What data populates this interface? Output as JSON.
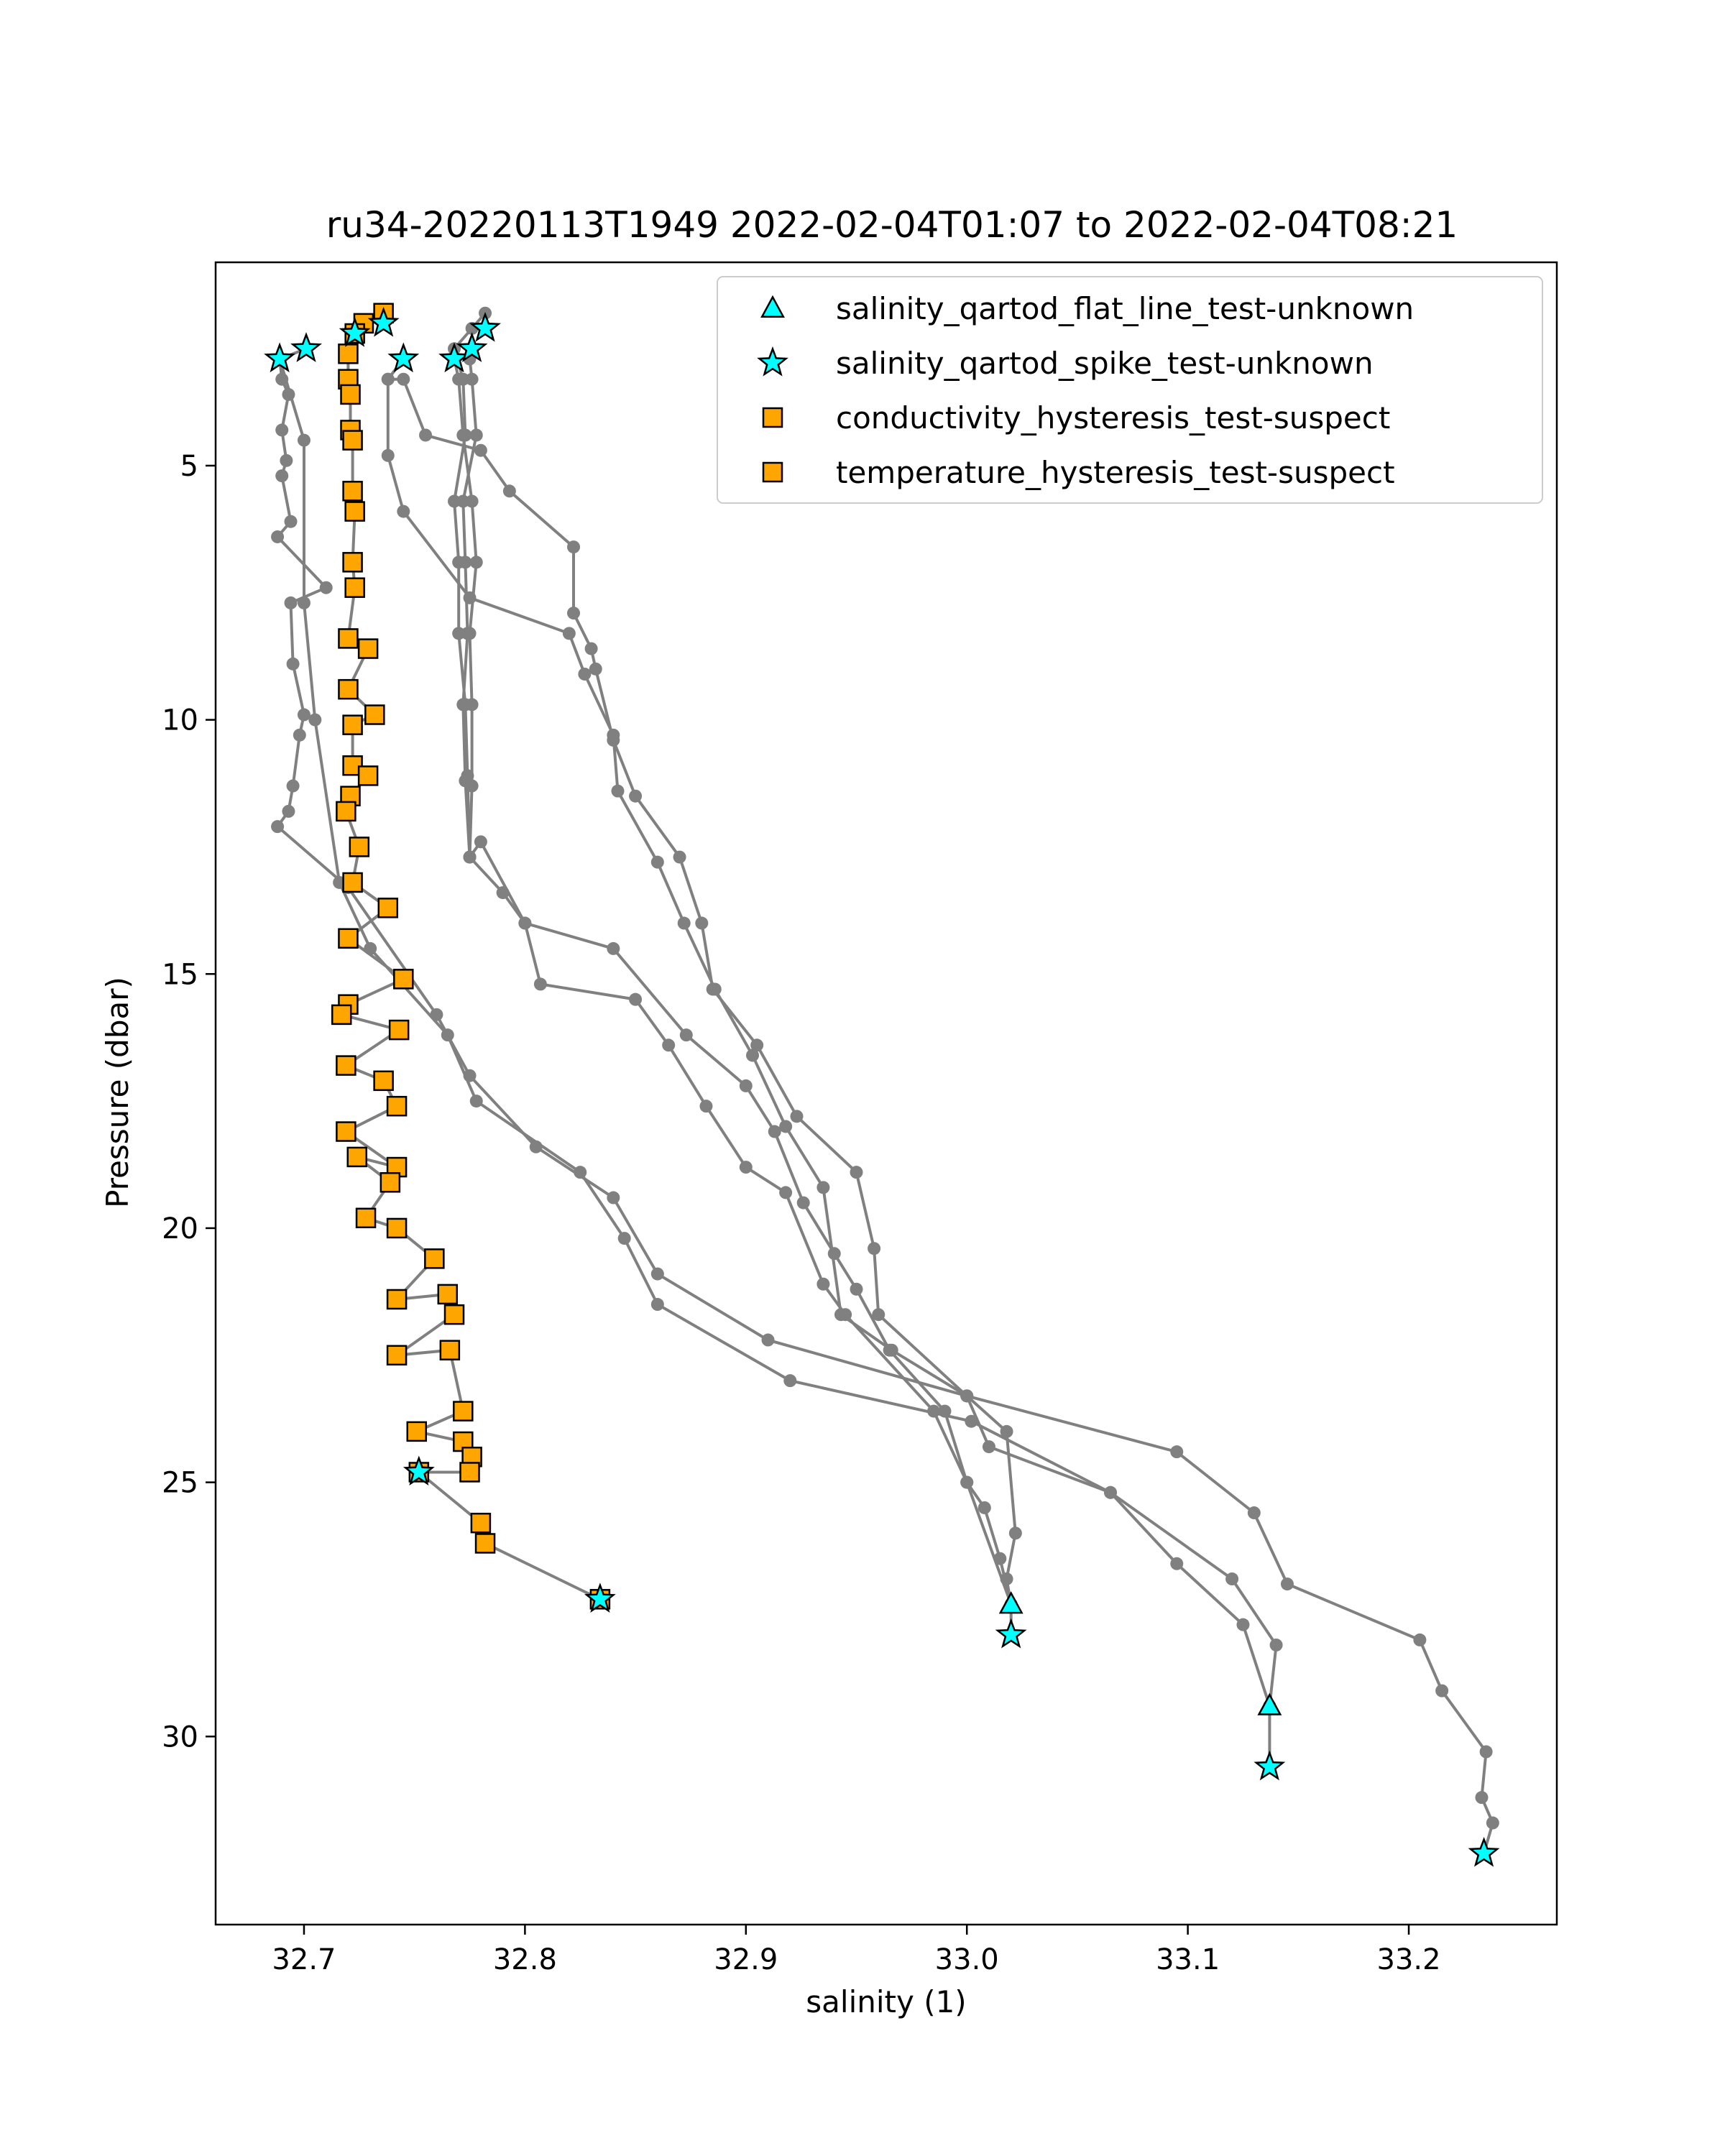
{
  "chart_data": {
    "type": "scatter",
    "title": "ru34-20220113T1949 2022-02-04T01:07 to 2022-02-04T08:21",
    "xlabel": "salinity (1)",
    "ylabel": "Pressure (dbar)",
    "xlim": [
      32.66,
      33.267
    ],
    "ylim": [
      33.7,
      1.0
    ],
    "y_inverted": true,
    "xticks": [
      "32.7",
      "32.8",
      "32.9",
      "33.0",
      "33.1",
      "33.2"
    ],
    "xtick_values": [
      32.7,
      32.8,
      32.9,
      33.0,
      33.1,
      33.2
    ],
    "yticks": [
      "5",
      "10",
      "15",
      "20",
      "25",
      "30"
    ],
    "ytick_values": [
      5,
      10,
      15,
      20,
      25,
      30
    ],
    "grid": false,
    "legend_position": "top-right",
    "colors": {
      "profile_line": "#808080",
      "flat_line_marker": "#00ffff",
      "spike_marker": "#00ffff",
      "hysteresis_marker": "#ffa500",
      "marker_edge": "#000000"
    },
    "legend": [
      {
        "label": "salinity_qartod_flat_line_test-unknown",
        "marker": "triangle",
        "color": "#00ffff"
      },
      {
        "label": "salinity_qartod_spike_test-unknown",
        "marker": "star",
        "color": "#00ffff"
      },
      {
        "label": "conductivity_hysteresis_test-suspect",
        "marker": "square",
        "color": "#ffa500"
      },
      {
        "label": "temperature_hysteresis_test-suspect",
        "marker": "square",
        "color": "#ffa500"
      }
    ],
    "profiles": [
      {
        "points": [
          [
            32.701,
            2.7
          ],
          [
            32.689,
            2.9
          ],
          [
            32.69,
            3.3
          ],
          [
            32.693,
            3.6
          ],
          [
            32.69,
            4.3
          ],
          [
            32.692,
            4.9
          ],
          [
            32.69,
            5.2
          ],
          [
            32.694,
            6.1
          ],
          [
            32.688,
            6.4
          ],
          [
            32.71,
            7.4
          ],
          [
            32.694,
            7.7
          ],
          [
            32.695,
            8.9
          ],
          [
            32.7,
            9.9
          ],
          [
            32.698,
            10.3
          ],
          [
            32.695,
            11.3
          ],
          [
            32.693,
            11.8
          ],
          [
            32.688,
            12.1
          ],
          [
            32.72,
            13.3
          ],
          [
            32.76,
            15.8
          ],
          [
            32.775,
            17.0
          ],
          [
            32.805,
            18.4
          ],
          [
            32.84,
            19.4
          ],
          [
            32.86,
            20.9
          ],
          [
            32.91,
            22.2
          ],
          [
            33.0,
            23.3
          ],
          [
            33.095,
            24.4
          ],
          [
            33.13,
            25.6
          ],
          [
            33.145,
            27.0
          ],
          [
            33.205,
            28.1
          ],
          [
            33.215,
            29.1
          ],
          [
            33.235,
            30.3
          ],
          [
            33.233,
            31.2
          ],
          [
            33.238,
            31.7
          ],
          [
            33.234,
            32.3
          ]
        ]
      },
      {
        "points": [
          [
            32.689,
            2.9
          ],
          [
            32.7,
            4.5
          ],
          [
            32.7,
            7.7
          ],
          [
            32.705,
            10.0
          ],
          [
            32.716,
            13.2
          ],
          [
            32.73,
            14.5
          ],
          [
            32.765,
            16.2
          ],
          [
            32.778,
            17.5
          ],
          [
            32.825,
            18.9
          ],
          [
            32.845,
            20.2
          ],
          [
            32.86,
            21.5
          ],
          [
            32.92,
            23.0
          ],
          [
            33.002,
            23.8
          ],
          [
            33.065,
            25.2
          ],
          [
            33.12,
            26.9
          ],
          [
            33.14,
            28.2
          ],
          [
            33.137,
            29.4
          ],
          [
            33.137,
            30.6
          ]
        ]
      },
      {
        "points": [
          [
            32.745,
            2.9
          ],
          [
            32.738,
            3.3
          ],
          [
            32.745,
            3.3
          ],
          [
            32.755,
            4.4
          ],
          [
            32.78,
            4.7
          ],
          [
            32.793,
            5.5
          ],
          [
            32.822,
            6.6
          ],
          [
            32.822,
            7.9
          ],
          [
            32.83,
            8.6
          ],
          [
            32.832,
            9.0
          ],
          [
            32.84,
            10.4
          ],
          [
            32.85,
            11.5
          ],
          [
            32.87,
            12.7
          ],
          [
            32.88,
            14.0
          ],
          [
            32.885,
            15.3
          ],
          [
            32.905,
            16.4
          ],
          [
            32.923,
            17.8
          ],
          [
            32.95,
            18.9
          ],
          [
            32.958,
            20.4
          ],
          [
            32.96,
            21.7
          ],
          [
            33.0,
            23.3
          ],
          [
            33.01,
            24.3
          ],
          [
            33.065,
            25.2
          ],
          [
            33.095,
            26.6
          ],
          [
            33.125,
            27.8
          ],
          [
            33.137,
            29.4
          ]
        ]
      },
      {
        "points": [
          [
            32.745,
            2.9
          ],
          [
            32.738,
            3.3
          ],
          [
            32.738,
            4.8
          ],
          [
            32.745,
            5.9
          ],
          [
            32.775,
            7.6
          ],
          [
            32.82,
            8.3
          ],
          [
            32.827,
            9.1
          ],
          [
            32.84,
            10.3
          ],
          [
            32.842,
            11.4
          ],
          [
            32.86,
            12.8
          ],
          [
            32.872,
            14.0
          ],
          [
            32.886,
            15.3
          ],
          [
            32.903,
            16.6
          ],
          [
            32.918,
            18.0
          ],
          [
            32.935,
            19.2
          ],
          [
            32.943,
            21.7
          ],
          [
            32.966,
            22.4
          ],
          [
            33.0,
            23.3
          ],
          [
            33.018,
            24.0
          ],
          [
            33.022,
            26.0
          ],
          [
            33.018,
            26.9
          ],
          [
            33.02,
            27.4
          ],
          [
            33.02,
            28.0
          ]
        ]
      },
      {
        "points": [
          [
            32.768,
            2.9
          ],
          [
            32.77,
            3.3
          ],
          [
            32.772,
            4.4
          ],
          [
            32.776,
            5.7
          ],
          [
            32.778,
            6.9
          ],
          [
            32.775,
            8.3
          ],
          [
            32.776,
            9.7
          ],
          [
            32.776,
            11.3
          ],
          [
            32.775,
            12.7
          ],
          [
            32.78,
            12.4
          ],
          [
            32.8,
            14.0
          ],
          [
            32.807,
            15.2
          ],
          [
            32.85,
            15.5
          ],
          [
            32.865,
            16.4
          ],
          [
            32.882,
            17.6
          ],
          [
            32.9,
            18.8
          ],
          [
            32.918,
            19.3
          ],
          [
            32.935,
            21.1
          ],
          [
            32.945,
            21.7
          ],
          [
            32.985,
            23.6
          ],
          [
            33.0,
            25.0
          ],
          [
            33.008,
            25.5
          ],
          [
            33.015,
            26.5
          ],
          [
            33.02,
            27.4
          ]
        ]
      },
      {
        "points": [
          [
            32.775,
            2.9
          ],
          [
            32.776,
            3.3
          ],
          [
            32.778,
            4.4
          ],
          [
            32.772,
            5.7
          ],
          [
            32.773,
            6.9
          ],
          [
            32.774,
            8.3
          ],
          [
            32.772,
            9.7
          ],
          [
            32.773,
            11.2
          ],
          [
            32.775,
            12.7
          ],
          [
            32.79,
            13.4
          ],
          [
            32.8,
            14.0
          ],
          [
            32.84,
            14.5
          ],
          [
            32.873,
            16.2
          ],
          [
            32.9,
            17.2
          ],
          [
            32.913,
            18.1
          ],
          [
            32.926,
            19.5
          ],
          [
            32.94,
            20.5
          ],
          [
            32.95,
            21.2
          ],
          [
            32.965,
            22.4
          ],
          [
            32.99,
            23.6
          ],
          [
            33.0,
            25.0
          ],
          [
            33.02,
            27.4
          ]
        ]
      },
      {
        "points": [
          [
            32.782,
            2.0
          ],
          [
            32.776,
            2.3
          ],
          [
            32.768,
            2.7
          ],
          [
            32.772,
            3.3
          ],
          [
            32.773,
            4.4
          ],
          [
            32.768,
            5.7
          ],
          [
            32.77,
            6.9
          ],
          [
            32.77,
            8.3
          ],
          [
            32.773,
            9.7
          ],
          [
            32.774,
            11.1
          ],
          [
            32.775,
            12.7
          ]
        ]
      },
      {
        "points": [
          [
            32.736,
            2.0
          ],
          [
            32.727,
            2.2
          ],
          [
            32.723,
            2.4
          ],
          [
            32.72,
            2.8
          ],
          [
            32.72,
            3.3
          ],
          [
            32.721,
            3.6
          ],
          [
            32.721,
            4.3
          ],
          [
            32.722,
            4.5
          ],
          [
            32.722,
            5.5
          ],
          [
            32.723,
            5.9
          ],
          [
            32.722,
            6.9
          ],
          [
            32.723,
            7.4
          ],
          [
            32.72,
            8.4
          ],
          [
            32.729,
            8.6
          ],
          [
            32.72,
            9.4
          ],
          [
            32.732,
            9.9
          ],
          [
            32.722,
            10.1
          ],
          [
            32.722,
            10.9
          ],
          [
            32.729,
            11.1
          ],
          [
            32.721,
            11.5
          ],
          [
            32.719,
            11.8
          ],
          [
            32.725,
            12.5
          ],
          [
            32.722,
            13.2
          ],
          [
            32.738,
            13.7
          ],
          [
            32.72,
            14.3
          ],
          [
            32.745,
            15.1
          ],
          [
            32.72,
            15.6
          ],
          [
            32.717,
            15.8
          ],
          [
            32.743,
            16.1
          ],
          [
            32.719,
            16.8
          ],
          [
            32.736,
            17.1
          ],
          [
            32.742,
            17.6
          ],
          [
            32.719,
            18.1
          ],
          [
            32.742,
            18.8
          ],
          [
            32.724,
            18.6
          ],
          [
            32.739,
            19.1
          ],
          [
            32.728,
            19.8
          ],
          [
            32.742,
            20.0
          ],
          [
            32.759,
            20.6
          ],
          [
            32.742,
            21.4
          ],
          [
            32.765,
            21.3
          ],
          [
            32.768,
            21.7
          ],
          [
            32.742,
            22.5
          ],
          [
            32.766,
            22.4
          ],
          [
            32.772,
            23.6
          ],
          [
            32.751,
            24.0
          ],
          [
            32.772,
            24.2
          ],
          [
            32.776,
            24.5
          ],
          [
            32.775,
            24.8
          ],
          [
            32.752,
            24.8
          ],
          [
            32.78,
            25.8
          ],
          [
            32.782,
            26.2
          ],
          [
            32.834,
            27.3
          ]
        ]
      }
    ],
    "series": [
      {
        "name": "salinity_qartod_flat_line_test-unknown",
        "marker": "triangle",
        "x": [
          33.02,
          33.137
        ],
        "y": [
          27.4,
          29.4
        ]
      },
      {
        "name": "salinity_qartod_spike_test-unknown",
        "marker": "star",
        "x": [
          32.689,
          32.701,
          32.745,
          32.768,
          32.776,
          32.782,
          32.723,
          32.736,
          32.752,
          32.834,
          33.02,
          33.137,
          33.234
        ],
        "y": [
          2.9,
          2.7,
          2.9,
          2.9,
          2.7,
          2.3,
          2.4,
          2.2,
          24.8,
          27.3,
          28.0,
          30.6,
          32.3
        ]
      },
      {
        "name": "conductivity_hysteresis_test-suspect",
        "marker": "square",
        "x": [
          32.736,
          32.727,
          32.723,
          32.72,
          32.72,
          32.721,
          32.721,
          32.722,
          32.722,
          32.723,
          32.722,
          32.723,
          32.72,
          32.729,
          32.72,
          32.732,
          32.722,
          32.722,
          32.729,
          32.721,
          32.719,
          32.725,
          32.722,
          32.738,
          32.72,
          32.745,
          32.72,
          32.717,
          32.743,
          32.719,
          32.736,
          32.742,
          32.719,
          32.742,
          32.724,
          32.739,
          32.728,
          32.742,
          32.759,
          32.742,
          32.765,
          32.768,
          32.742,
          32.766,
          32.772,
          32.751,
          32.772,
          32.776,
          32.775,
          32.752,
          32.78,
          32.782,
          32.834
        ],
        "y": [
          2.0,
          2.2,
          2.4,
          2.8,
          3.3,
          3.6,
          4.3,
          4.5,
          5.5,
          5.9,
          6.9,
          7.4,
          8.4,
          8.6,
          9.4,
          9.9,
          10.1,
          10.9,
          11.1,
          11.5,
          11.8,
          12.5,
          13.2,
          13.7,
          14.3,
          15.1,
          15.6,
          15.8,
          16.1,
          16.8,
          17.1,
          17.6,
          18.1,
          18.8,
          18.6,
          19.1,
          19.8,
          20.0,
          20.6,
          21.4,
          21.3,
          21.7,
          22.5,
          22.4,
          23.6,
          24.0,
          24.2,
          24.5,
          24.8,
          24.8,
          25.8,
          26.2,
          27.3
        ]
      },
      {
        "name": "temperature_hysteresis_test-suspect",
        "marker": "square",
        "same_as": "conductivity_hysteresis_test-suspect"
      }
    ]
  }
}
